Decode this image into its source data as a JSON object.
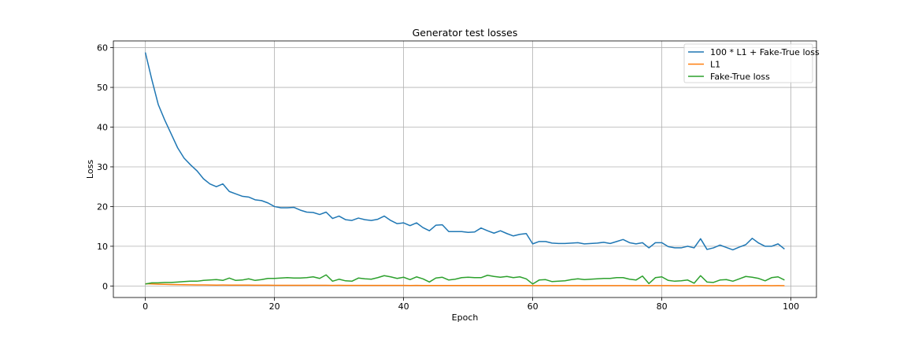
{
  "chart_data": {
    "type": "line",
    "title": "Generator test losses",
    "xlabel": "Epoch",
    "ylabel": "Loss",
    "xlim": [
      -4.95,
      103.95
    ],
    "ylim": [
      -2.9,
      61.7
    ],
    "xticks": [
      0,
      20,
      40,
      60,
      80,
      100
    ],
    "yticks": [
      0,
      10,
      20,
      30,
      40,
      50,
      60
    ],
    "grid": true,
    "legend_position": "top-right",
    "series": [
      {
        "name": "100 * L1 + Fake-True loss",
        "color": "#1f77b4",
        "x": [
          0,
          1,
          2,
          3,
          4,
          5,
          6,
          7,
          8,
          9,
          10,
          11,
          12,
          13,
          14,
          15,
          16,
          17,
          18,
          19,
          20,
          21,
          22,
          23,
          24,
          25,
          26,
          27,
          28,
          29,
          30,
          31,
          32,
          33,
          34,
          35,
          36,
          37,
          38,
          39,
          40,
          41,
          42,
          43,
          44,
          45,
          46,
          47,
          48,
          49,
          50,
          51,
          52,
          53,
          54,
          55,
          56,
          57,
          58,
          59,
          60,
          61,
          62,
          63,
          64,
          65,
          66,
          67,
          68,
          69,
          70,
          71,
          72,
          73,
          74,
          75,
          76,
          77,
          78,
          79,
          80,
          81,
          82,
          83,
          84,
          85,
          86,
          87,
          88,
          89,
          90,
          91,
          92,
          93,
          94,
          95,
          96,
          97,
          98,
          99
        ],
        "y": [
          58.8,
          52.0,
          45.7,
          41.8,
          38.3,
          34.8,
          32.2,
          30.5,
          29.0,
          27.0,
          25.7,
          25.0,
          25.7,
          23.8,
          23.2,
          22.6,
          22.4,
          21.7,
          21.5,
          20.9,
          20.0,
          19.7,
          19.7,
          19.8,
          19.1,
          18.6,
          18.5,
          18.0,
          18.6,
          17.0,
          17.6,
          16.7,
          16.5,
          17.1,
          16.7,
          16.5,
          16.8,
          17.6,
          16.5,
          15.7,
          15.9,
          15.2,
          15.9,
          14.7,
          13.9,
          15.3,
          15.4,
          13.7,
          13.7,
          13.7,
          13.5,
          13.6,
          14.6,
          13.9,
          13.3,
          13.9,
          13.2,
          12.6,
          13.0,
          13.2,
          10.6,
          11.2,
          11.2,
          10.8,
          10.7,
          10.7,
          10.8,
          10.9,
          10.6,
          10.7,
          10.8,
          11.0,
          10.7,
          11.2,
          11.7,
          10.9,
          10.6,
          10.9,
          9.6,
          10.9,
          10.9,
          9.9,
          9.6,
          9.6,
          10.0,
          9.6,
          11.9,
          9.2,
          9.6,
          10.3,
          9.7,
          9.1,
          9.8,
          10.4,
          12.0,
          10.8,
          10.0,
          10.0,
          10.6,
          9.3
        ]
      },
      {
        "name": "L1",
        "color": "#ff7f0e",
        "x": [
          0,
          1,
          2,
          3,
          4,
          5,
          6,
          7,
          8,
          9,
          10,
          11,
          12,
          13,
          14,
          15,
          16,
          17,
          18,
          19,
          20,
          21,
          22,
          23,
          24,
          25,
          26,
          27,
          28,
          29,
          30,
          31,
          32,
          33,
          34,
          35,
          36,
          37,
          38,
          39,
          40,
          41,
          42,
          43,
          44,
          45,
          46,
          47,
          48,
          49,
          50,
          51,
          52,
          53,
          54,
          55,
          56,
          57,
          58,
          59,
          60,
          61,
          62,
          63,
          64,
          65,
          66,
          67,
          68,
          69,
          70,
          71,
          72,
          73,
          74,
          75,
          76,
          77,
          78,
          79,
          80,
          81,
          82,
          83,
          84,
          85,
          86,
          87,
          88,
          89,
          90,
          91,
          92,
          93,
          94,
          95,
          96,
          97,
          98,
          99
        ],
        "y": [
          0.58,
          0.51,
          0.45,
          0.41,
          0.37,
          0.34,
          0.31,
          0.29,
          0.28,
          0.26,
          0.24,
          0.23,
          0.24,
          0.22,
          0.22,
          0.21,
          0.21,
          0.2,
          0.2,
          0.19,
          0.18,
          0.18,
          0.18,
          0.18,
          0.17,
          0.17,
          0.16,
          0.16,
          0.16,
          0.15,
          0.16,
          0.15,
          0.15,
          0.15,
          0.15,
          0.14,
          0.15,
          0.15,
          0.14,
          0.14,
          0.14,
          0.13,
          0.14,
          0.13,
          0.12,
          0.13,
          0.13,
          0.12,
          0.12,
          0.12,
          0.12,
          0.12,
          0.12,
          0.12,
          0.11,
          0.12,
          0.11,
          0.11,
          0.11,
          0.11,
          0.1,
          0.1,
          0.1,
          0.1,
          0.1,
          0.1,
          0.1,
          0.1,
          0.09,
          0.09,
          0.09,
          0.09,
          0.09,
          0.09,
          0.1,
          0.09,
          0.09,
          0.09,
          0.09,
          0.09,
          0.09,
          0.09,
          0.08,
          0.08,
          0.08,
          0.08,
          0.09,
          0.08,
          0.08,
          0.09,
          0.08,
          0.08,
          0.08,
          0.08,
          0.1,
          0.09,
          0.09,
          0.08,
          0.09,
          0.08
        ]
      },
      {
        "name": "Fake-True loss",
        "color": "#2ca02c",
        "x": [
          0,
          1,
          2,
          3,
          4,
          5,
          6,
          7,
          8,
          9,
          10,
          11,
          12,
          13,
          14,
          15,
          16,
          17,
          18,
          19,
          20,
          21,
          22,
          23,
          24,
          25,
          26,
          27,
          28,
          29,
          30,
          31,
          32,
          33,
          34,
          35,
          36,
          37,
          38,
          39,
          40,
          41,
          42,
          43,
          44,
          45,
          46,
          47,
          48,
          49,
          50,
          51,
          52,
          53,
          54,
          55,
          56,
          57,
          58,
          59,
          60,
          61,
          62,
          63,
          64,
          65,
          66,
          67,
          68,
          69,
          70,
          71,
          72,
          73,
          74,
          75,
          76,
          77,
          78,
          79,
          80,
          81,
          82,
          83,
          84,
          85,
          86,
          87,
          88,
          89,
          90,
          91,
          92,
          93,
          94,
          95,
          96,
          97,
          98,
          99
        ],
        "y": [
          0.5,
          0.8,
          0.8,
          0.9,
          0.9,
          1.0,
          1.1,
          1.2,
          1.2,
          1.4,
          1.5,
          1.6,
          1.4,
          2.0,
          1.4,
          1.5,
          1.8,
          1.4,
          1.6,
          1.9,
          1.9,
          2.0,
          2.1,
          2.0,
          2.0,
          2.1,
          2.3,
          1.9,
          2.8,
          1.2,
          1.7,
          1.3,
          1.2,
          2.0,
          1.8,
          1.7,
          2.1,
          2.6,
          2.3,
          1.9,
          2.2,
          1.6,
          2.3,
          1.8,
          1.0,
          2.0,
          2.2,
          1.5,
          1.7,
          2.1,
          2.2,
          2.1,
          2.1,
          2.7,
          2.4,
          2.2,
          2.4,
          2.1,
          2.3,
          1.8,
          0.5,
          1.5,
          1.6,
          1.1,
          1.2,
          1.3,
          1.6,
          1.8,
          1.6,
          1.7,
          1.8,
          1.9,
          1.9,
          2.1,
          2.1,
          1.7,
          1.5,
          2.5,
          0.6,
          2.1,
          2.3,
          1.4,
          1.2,
          1.3,
          1.5,
          0.7,
          2.6,
          1.0,
          0.9,
          1.5,
          1.6,
          1.2,
          1.8,
          2.4,
          2.2,
          1.9,
          1.3,
          2.1,
          2.3,
          1.5
        ]
      }
    ]
  }
}
